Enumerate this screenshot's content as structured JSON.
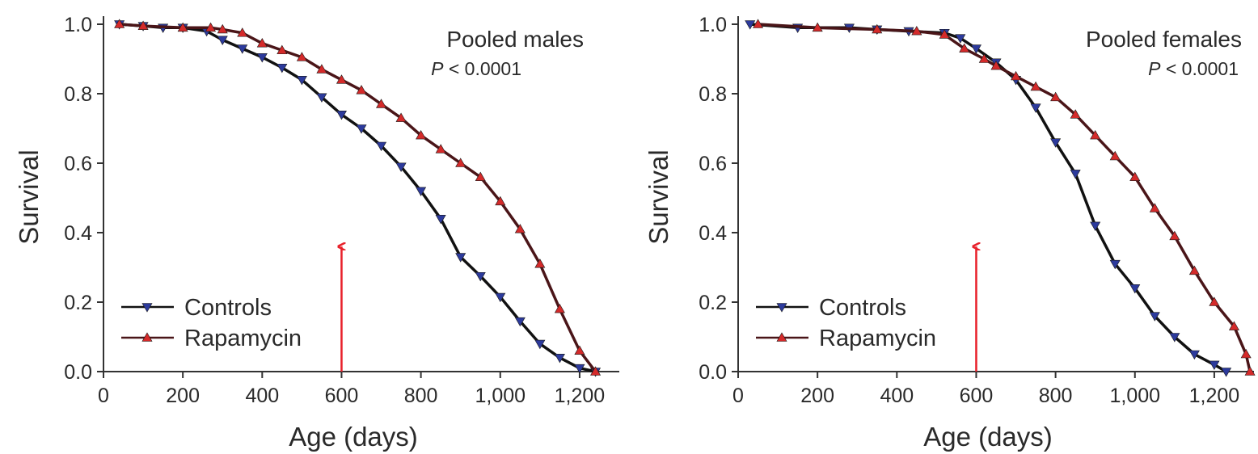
{
  "chart_data": [
    {
      "type": "line",
      "title": "Pooled males",
      "subtitle_italic": "P",
      "subtitle_rest": " < 0.0001",
      "xlabel": "Age (days)",
      "ylabel": "Survival",
      "xlim": [
        0,
        1300
      ],
      "ylim": [
        0,
        1.0
      ],
      "xticks": [
        0,
        200,
        400,
        600,
        800,
        1000,
        1200
      ],
      "xtick_labels": [
        "0",
        "200",
        "400",
        "600",
        "800",
        "1,000",
        "1,200"
      ],
      "yticks": [
        0,
        0.2,
        0.4,
        0.6,
        0.8,
        1.0
      ],
      "ytick_labels": [
        "0.0",
        "0.2",
        "0.4",
        "0.6",
        "0.8",
        "1.0"
      ],
      "grid": false,
      "legend": "bottom-left",
      "annotation": {
        "type": "arrow",
        "x": 600,
        "color": "#e8202a"
      },
      "series": [
        {
          "name": "Controls",
          "marker": "triangle-down",
          "line_color": "#111111",
          "marker_color": "#2c3a9c",
          "x": [
            40,
            100,
            150,
            200,
            260,
            300,
            350,
            400,
            450,
            500,
            550,
            600,
            650,
            700,
            750,
            800,
            850,
            900,
            950,
            1000,
            1050,
            1100,
            1150,
            1200,
            1240
          ],
          "y": [
            1.0,
            0.995,
            0.99,
            0.99,
            0.98,
            0.955,
            0.93,
            0.905,
            0.875,
            0.84,
            0.79,
            0.74,
            0.7,
            0.65,
            0.59,
            0.52,
            0.44,
            0.33,
            0.275,
            0.215,
            0.145,
            0.08,
            0.04,
            0.01,
            0.0
          ]
        },
        {
          "name": "Rapamycin",
          "marker": "triangle-up",
          "line_color": "#4a1518",
          "marker_color": "#d42a2a",
          "x": [
            40,
            100,
            200,
            270,
            300,
            350,
            400,
            450,
            500,
            550,
            600,
            650,
            700,
            750,
            800,
            850,
            900,
            950,
            1000,
            1050,
            1100,
            1150,
            1200,
            1240
          ],
          "y": [
            1.0,
            0.995,
            0.99,
            0.99,
            0.985,
            0.975,
            0.945,
            0.925,
            0.905,
            0.87,
            0.84,
            0.81,
            0.77,
            0.73,
            0.68,
            0.64,
            0.6,
            0.56,
            0.49,
            0.41,
            0.31,
            0.18,
            0.06,
            0.0
          ]
        }
      ]
    },
    {
      "type": "line",
      "title": "Pooled females",
      "subtitle_italic": "P",
      "subtitle_rest": " < 0.0001",
      "xlabel": "Age (days)",
      "ylabel": "Survival",
      "xlim": [
        0,
        1300
      ],
      "ylim": [
        0,
        1.0
      ],
      "xticks": [
        0,
        200,
        400,
        600,
        800,
        1000,
        1200
      ],
      "xtick_labels": [
        "0",
        "200",
        "400",
        "600",
        "800",
        "1,000",
        "1,200"
      ],
      "yticks": [
        0,
        0.2,
        0.4,
        0.6,
        0.8,
        1.0
      ],
      "ytick_labels": [
        "0.0",
        "0.2",
        "0.4",
        "0.6",
        "0.8",
        "1.0"
      ],
      "grid": false,
      "legend": "bottom-left",
      "annotation": {
        "type": "arrow",
        "x": 600,
        "color": "#e8202a"
      },
      "series": [
        {
          "name": "Controls",
          "marker": "triangle-down",
          "line_color": "#111111",
          "marker_color": "#2c3a9c",
          "x": [
            30,
            150,
            280,
            350,
            430,
            520,
            560,
            600,
            650,
            700,
            750,
            800,
            850,
            900,
            950,
            1000,
            1050,
            1100,
            1150,
            1200,
            1230
          ],
          "y": [
            1.0,
            0.99,
            0.99,
            0.985,
            0.98,
            0.975,
            0.96,
            0.93,
            0.89,
            0.84,
            0.76,
            0.66,
            0.57,
            0.42,
            0.31,
            0.24,
            0.16,
            0.1,
            0.05,
            0.02,
            0.0
          ]
        },
        {
          "name": "Rapamycin",
          "marker": "triangle-up",
          "line_color": "#4a1518",
          "marker_color": "#d42a2a",
          "x": [
            50,
            200,
            350,
            450,
            520,
            570,
            620,
            650,
            700,
            750,
            800,
            850,
            900,
            950,
            1000,
            1050,
            1100,
            1150,
            1200,
            1250,
            1280,
            1290
          ],
          "y": [
            1.0,
            0.99,
            0.985,
            0.98,
            0.97,
            0.93,
            0.9,
            0.88,
            0.85,
            0.82,
            0.79,
            0.74,
            0.68,
            0.62,
            0.56,
            0.47,
            0.39,
            0.29,
            0.2,
            0.13,
            0.05,
            0.0
          ]
        }
      ]
    }
  ]
}
